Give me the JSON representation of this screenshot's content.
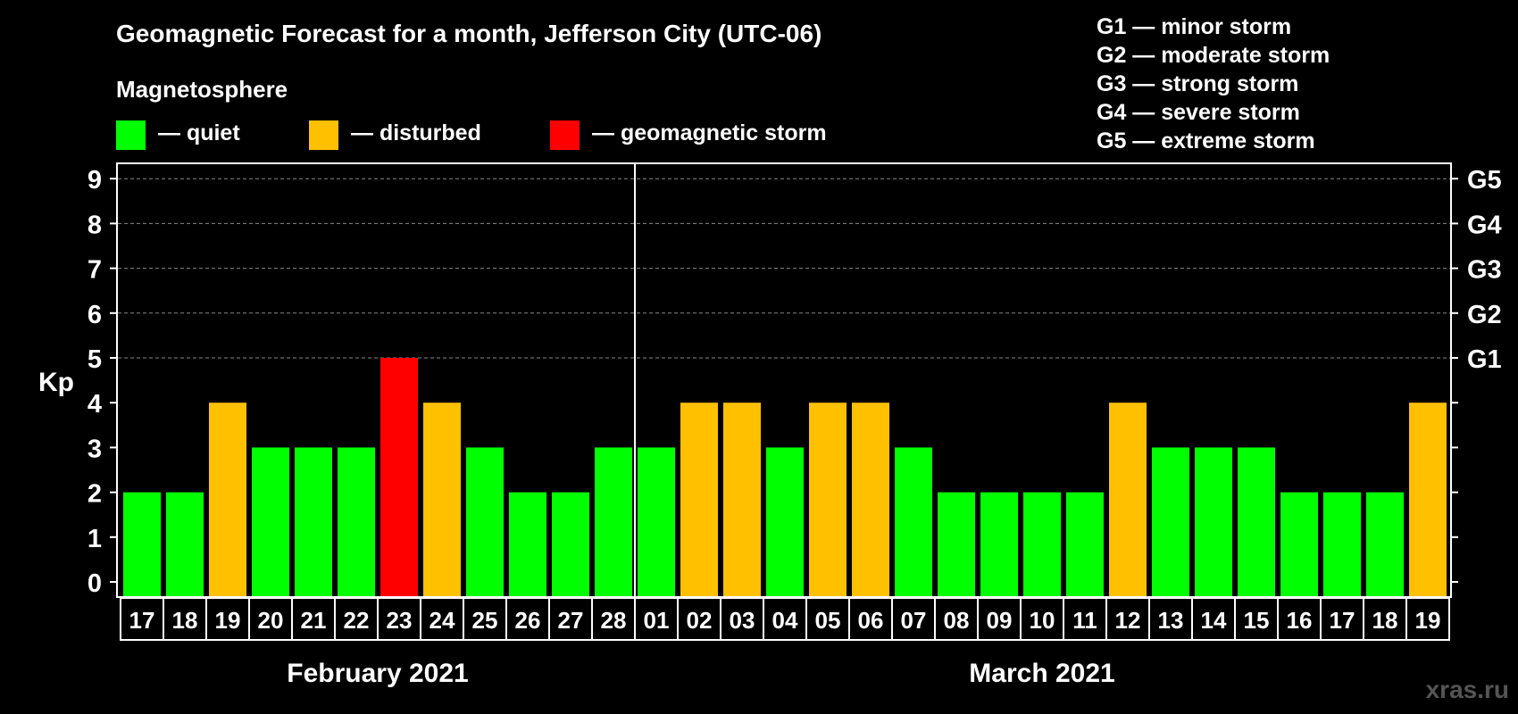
{
  "chart_data": {
    "type": "bar",
    "title": "Geomagnetic Forecast for a month, Jefferson City (UTC-06)",
    "ylabel": "Kp",
    "ylim": [
      0,
      9
    ],
    "yticks": [
      "0",
      "1",
      "2",
      "3",
      "4",
      "5",
      "6",
      "7",
      "8",
      "9"
    ],
    "grid": true,
    "legend_title": "Magnetosphere",
    "legend": [
      {
        "key": "quiet",
        "label": "— quiet",
        "color": "#00ff00"
      },
      {
        "key": "disturbed",
        "label": "— disturbed",
        "color": "#ffc000"
      },
      {
        "key": "storm",
        "label": "— geomagnetic storm",
        "color": "#ff0000"
      }
    ],
    "g_legend": [
      "G1 — minor storm",
      "G2 — moderate storm",
      "G3 — strong storm",
      "G4 — severe storm",
      "G5 — extreme storm"
    ],
    "g_levels": [
      {
        "label": "G1",
        "kp": 5
      },
      {
        "label": "G2",
        "kp": 6
      },
      {
        "label": "G3",
        "kp": 7
      },
      {
        "label": "G4",
        "kp": 8
      },
      {
        "label": "G5",
        "kp": 9
      }
    ],
    "months": [
      {
        "label": "February 2021",
        "start": 0,
        "end": 11
      },
      {
        "label": "March 2021",
        "start": 12,
        "end": 30
      }
    ],
    "categories": [
      "17",
      "18",
      "19",
      "20",
      "21",
      "22",
      "23",
      "24",
      "25",
      "26",
      "27",
      "28",
      "01",
      "02",
      "03",
      "04",
      "05",
      "06",
      "07",
      "08",
      "09",
      "10",
      "11",
      "12",
      "13",
      "14",
      "15",
      "16",
      "17",
      "18",
      "19"
    ],
    "values": [
      2,
      2,
      4,
      3,
      3,
      3,
      5,
      4,
      3,
      2,
      2,
      3,
      3,
      4,
      4,
      3,
      4,
      4,
      3,
      2,
      2,
      2,
      2,
      4,
      3,
      3,
      3,
      2,
      2,
      2,
      4
    ],
    "levels": [
      "quiet",
      "quiet",
      "disturbed",
      "quiet",
      "quiet",
      "quiet",
      "storm",
      "disturbed",
      "quiet",
      "quiet",
      "quiet",
      "quiet",
      "quiet",
      "disturbed",
      "disturbed",
      "quiet",
      "disturbed",
      "disturbed",
      "quiet",
      "quiet",
      "quiet",
      "quiet",
      "quiet",
      "disturbed",
      "quiet",
      "quiet",
      "quiet",
      "quiet",
      "quiet",
      "quiet",
      "disturbed"
    ]
  },
  "watermark": "xras.ru"
}
